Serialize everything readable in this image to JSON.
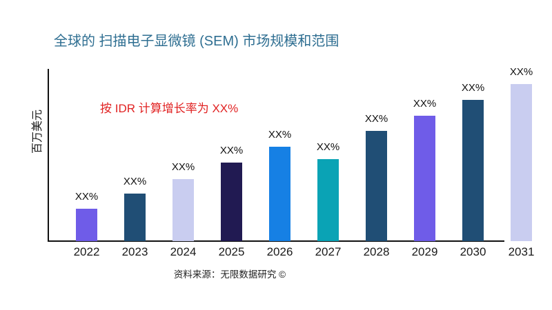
{
  "title": "全球的 扫描电子显微镜 (SEM) 市场规模和范围",
  "annotation": "按 IDR 计算增长率为 XX%",
  "source": "资料来源：无限数据研究 ©",
  "colors": {
    "title": "#2E6E91",
    "annotation": "#E12222",
    "axis": "#101010",
    "background": "#FFFFFF"
  },
  "chart_data": {
    "type": "bar",
    "title": "全球的 扫描电子显微镜 (SEM) 市场规模和范围",
    "xlabel": "",
    "ylabel": "百万美元",
    "categories": [
      "2022",
      "2023",
      "2024",
      "2025",
      "2026",
      "2027",
      "2028",
      "2029",
      "2030",
      "2031"
    ],
    "bar_labels": [
      "XX%",
      "XX%",
      "XX%",
      "XX%",
      "XX%",
      "XX%",
      "XX%",
      "XX%",
      "XX%",
      "XX%"
    ],
    "values_note": "no numeric axis shown; values are relative bar heights in px (baseline y=350, plot top y=100)",
    "values": [
      47,
      69,
      90,
      114,
      137,
      119,
      160,
      182,
      205,
      228
    ],
    "bar_colors": [
      "#6F5CE8",
      "#204E75",
      "#C9CDF0",
      "#211A52",
      "#1680E4",
      "#0AA3B5",
      "#204E75",
      "#6F5CE8",
      "#204E75",
      "#C9CDF0"
    ],
    "annotation": "按 IDR 计算增长率为 XX%",
    "grid": false,
    "legend": false,
    "ylim": [
      0,
      250
    ]
  }
}
